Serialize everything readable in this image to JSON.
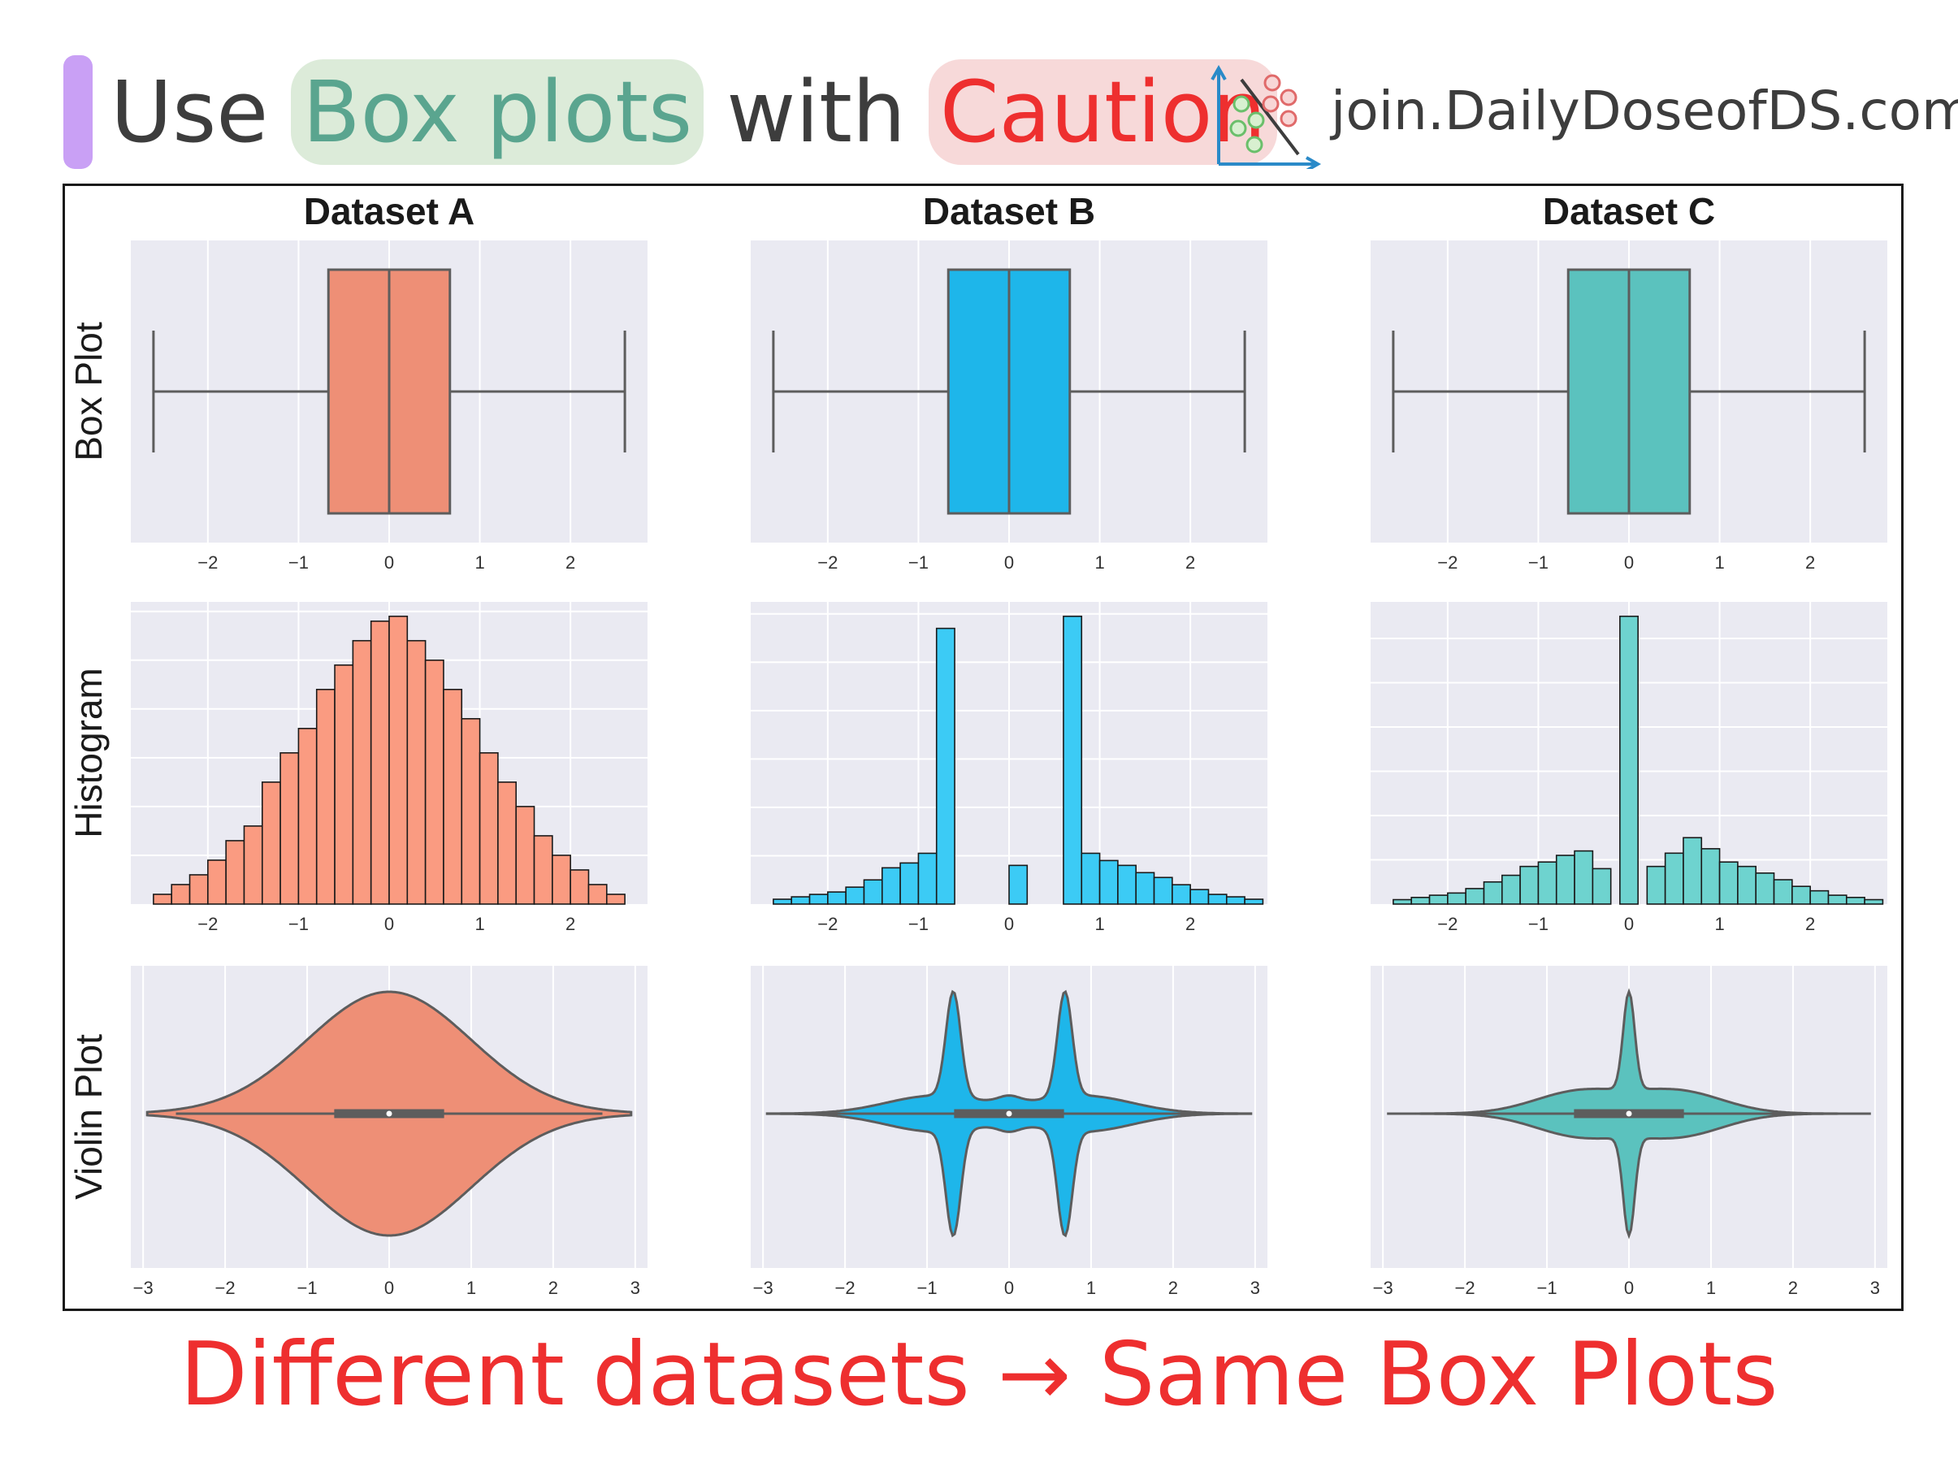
{
  "header": {
    "title_use": "Use",
    "title_highlight": "Box plots",
    "title_with": "with",
    "title_caution": "Caution",
    "brand": "join.DailyDoseofDS.com",
    "logo_icon": "scatter-plot-logo-icon"
  },
  "footer": {
    "text": "Different datasets → Same Box Plots"
  },
  "colors": {
    "dataset_a": "#EE8F76",
    "dataset_a_hist": "#FA9B81",
    "dataset_b": "#1EB6EA",
    "dataset_b_hist": "#3CCBF5",
    "dataset_c": "#5BC2BE",
    "dataset_c_hist": "#6ED3CF",
    "plot_bg": "#EAEAF2",
    "line": "#5d5d5d"
  },
  "chart_data": {
    "type": "figure-grid",
    "row_labels": [
      "Box Plot",
      "Histogram",
      "Violin Plot"
    ],
    "datasets": [
      {
        "title": "Dataset A",
        "box": {
          "type": "box",
          "min": -2.6,
          "q1": -0.67,
          "median": 0.0,
          "q3": 0.67,
          "max": 2.6,
          "xticks": [
            -2,
            -1,
            0,
            1,
            2
          ],
          "xlim": [
            -2.85,
            2.85
          ]
        },
        "histogram": {
          "type": "bar",
          "bin_width": 0.2,
          "xlim": [
            -2.85,
            2.85
          ],
          "xticks": [
            -2,
            -1,
            0,
            1,
            2
          ],
          "bins": [
            [
              -2.6,
              2
            ],
            [
              -2.4,
              4
            ],
            [
              -2.2,
              6
            ],
            [
              -2.0,
              9
            ],
            [
              -1.8,
              13
            ],
            [
              -1.6,
              16
            ],
            [
              -1.4,
              25
            ],
            [
              -1.2,
              31
            ],
            [
              -1.0,
              36
            ],
            [
              -0.8,
              44
            ],
            [
              -0.6,
              49
            ],
            [
              -0.4,
              54
            ],
            [
              -0.2,
              58
            ],
            [
              0.0,
              59
            ],
            [
              0.2,
              54
            ],
            [
              0.4,
              50
            ],
            [
              0.6,
              44
            ],
            [
              0.8,
              38
            ],
            [
              1.0,
              31
            ],
            [
              1.2,
              25
            ],
            [
              1.4,
              20
            ],
            [
              1.6,
              14
            ],
            [
              1.8,
              10
            ],
            [
              2.0,
              7
            ],
            [
              2.2,
              4
            ],
            [
              2.4,
              2
            ]
          ]
        },
        "violin": {
          "type": "violin",
          "xlim": [
            -3.15,
            3.15
          ],
          "xticks": [
            -3,
            -2,
            -1,
            0,
            1,
            2,
            3
          ],
          "range": [
            -2.95,
            2.95
          ],
          "components": [
            {
              "mean": 0.0,
              "sd": 1.0,
              "weight": 1.0
            }
          ]
        }
      },
      {
        "title": "Dataset B",
        "box": {
          "type": "box",
          "min": -2.6,
          "q1": -0.67,
          "median": 0.0,
          "q3": 0.67,
          "max": 2.6,
          "xticks": [
            -2,
            -1,
            0,
            1,
            2
          ],
          "xlim": [
            -2.85,
            2.85
          ]
        },
        "histogram": {
          "type": "bar",
          "bin_width": 0.2,
          "xlim": [
            -2.85,
            2.85
          ],
          "xticks": [
            -2,
            -1,
            0,
            1,
            2
          ],
          "bins": [
            [
              -2.6,
              2
            ],
            [
              -2.4,
              3
            ],
            [
              -2.2,
              4
            ],
            [
              -2.0,
              5
            ],
            [
              -1.8,
              7
            ],
            [
              -1.6,
              10
            ],
            [
              -1.4,
              15
            ],
            [
              -1.2,
              17
            ],
            [
              -1.0,
              21
            ],
            [
              -0.8,
              114
            ],
            [
              0.0,
              16
            ],
            [
              0.6,
              119
            ],
            [
              0.8,
              21
            ],
            [
              1.0,
              18
            ],
            [
              1.2,
              16
            ],
            [
              1.4,
              13
            ],
            [
              1.6,
              11
            ],
            [
              1.8,
              8
            ],
            [
              2.0,
              6
            ],
            [
              2.2,
              4
            ],
            [
              2.4,
              3
            ],
            [
              2.6,
              2
            ]
          ]
        },
        "violin": {
          "type": "violin",
          "xlim": [
            -3.15,
            3.15
          ],
          "xticks": [
            -3,
            -2,
            -1,
            0,
            1,
            2,
            3
          ],
          "range": [
            -2.95,
            2.95
          ],
          "components": [
            {
              "mean": -0.68,
              "sd": 0.09,
              "weight": 0.22
            },
            {
              "mean": 0.68,
              "sd": 0.09,
              "weight": 0.22
            },
            {
              "mean": -0.9,
              "sd": 0.6,
              "weight": 0.25
            },
            {
              "mean": 0.9,
              "sd": 0.6,
              "weight": 0.25
            },
            {
              "mean": 0.0,
              "sd": 0.13,
              "weight": 0.02
            }
          ]
        }
      },
      {
        "title": "Dataset C",
        "box": {
          "type": "box",
          "min": -2.6,
          "q1": -0.67,
          "median": 0.0,
          "q3": 0.67,
          "max": 2.6,
          "xticks": [
            -2,
            -1,
            0,
            1,
            2
          ],
          "xlim": [
            -2.85,
            2.85
          ]
        },
        "histogram": {
          "type": "bar",
          "bin_width": 0.2,
          "xlim": [
            -2.85,
            2.85
          ],
          "xticks": [
            -2,
            -1,
            0,
            1,
            2
          ],
          "bins": [
            [
              -2.6,
              2
            ],
            [
              -2.4,
              3
            ],
            [
              -2.2,
              4
            ],
            [
              -2.0,
              5
            ],
            [
              -1.8,
              7
            ],
            [
              -1.6,
              10
            ],
            [
              -1.4,
              13
            ],
            [
              -1.2,
              17
            ],
            [
              -1.0,
              19
            ],
            [
              -0.8,
              22
            ],
            [
              -0.6,
              24
            ],
            [
              -0.4,
              16
            ],
            [
              -0.1,
              130
            ],
            [
              0.2,
              17
            ],
            [
              0.4,
              23
            ],
            [
              0.6,
              30
            ],
            [
              0.8,
              25
            ],
            [
              1.0,
              19
            ],
            [
              1.2,
              17
            ],
            [
              1.4,
              14
            ],
            [
              1.6,
              11
            ],
            [
              1.8,
              8
            ],
            [
              2.0,
              6
            ],
            [
              2.2,
              4
            ],
            [
              2.4,
              3
            ],
            [
              2.6,
              2
            ]
          ]
        },
        "violin": {
          "type": "violin",
          "xlim": [
            -3.15,
            3.15
          ],
          "xticks": [
            -3,
            -2,
            -1,
            0,
            1,
            2,
            3
          ],
          "range": [
            -2.95,
            2.95
          ],
          "components": [
            {
              "mean": 0.0,
              "sd": 0.07,
              "weight": 0.22
            },
            {
              "mean": -0.6,
              "sd": 0.55,
              "weight": 0.39
            },
            {
              "mean": 0.6,
              "sd": 0.55,
              "weight": 0.39
            }
          ]
        }
      }
    ]
  }
}
